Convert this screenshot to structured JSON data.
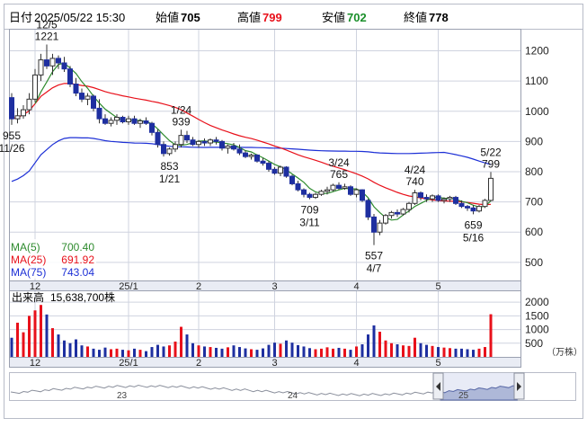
{
  "header": {
    "date_label": "日付",
    "datetime": "2025/05/22 15:30",
    "open_label": "始値",
    "open": "705",
    "high_label": "高値",
    "high": "799",
    "low_label": "安値",
    "low": "702",
    "close_label": "終値",
    "close": "778"
  },
  "legend": {
    "ma5_label": "MA(5)",
    "ma5": "700.40",
    "ma25_label": "MA(25)",
    "ma25": "691.92",
    "ma75_label": "MA(75)",
    "ma75": "743.04"
  },
  "volume_panel": {
    "title": "出来高",
    "value": "15,638,700株",
    "unit": "（万株）"
  },
  "navigator": {
    "year_labels": [
      "23",
      "24",
      "25"
    ]
  },
  "colors": {
    "up": "#e8101a",
    "down": "#1e2fa0",
    "ma5": "#2e8b2e",
    "ma25": "#e8101a",
    "ma75": "#1c2fd6",
    "grid": "#cfd3df",
    "nav_fill": "#aeb8d8"
  },
  "chart_data": [
    {
      "type": "candlestick",
      "ylim": [
        440,
        1270
      ],
      "y_ticks": [
        500,
        600,
        700,
        800,
        900,
        1000,
        1100,
        1200
      ],
      "x_tick_labels": [
        "12",
        "25/1",
        "2",
        "3",
        "4",
        "5"
      ],
      "candles": [
        [
          1045,
          1060,
          955,
          975
        ],
        [
          975,
          1010,
          960,
          985
        ],
        [
          985,
          1020,
          975,
          1005
        ],
        [
          1005,
          1060,
          990,
          1040
        ],
        [
          1040,
          1140,
          1030,
          1120
        ],
        [
          1120,
          1190,
          1100,
          1170
        ],
        [
          1170,
          1221,
          1140,
          1150
        ],
        [
          1150,
          1190,
          1120,
          1175
        ],
        [
          1175,
          1185,
          1140,
          1160
        ],
        [
          1160,
          1180,
          1130,
          1140
        ],
        [
          1140,
          1150,
          1080,
          1090
        ],
        [
          1090,
          1110,
          1050,
          1060
        ],
        [
          1060,
          1075,
          1030,
          1040
        ],
        [
          1040,
          1060,
          1020,
          1050
        ],
        [
          1050,
          1055,
          1000,
          1010
        ],
        [
          1010,
          1040,
          960,
          975
        ],
        [
          975,
          990,
          955,
          960
        ],
        [
          960,
          980,
          950,
          970
        ],
        [
          970,
          990,
          955,
          980
        ],
        [
          980,
          985,
          960,
          965
        ],
        [
          965,
          985,
          955,
          975
        ],
        [
          975,
          985,
          955,
          960
        ],
        [
          960,
          975,
          945,
          968
        ],
        [
          968,
          980,
          955,
          960
        ],
        [
          960,
          965,
          920,
          930
        ],
        [
          930,
          940,
          880,
          890
        ],
        [
          890,
          900,
          850,
          860
        ],
        [
          860,
          880,
          853,
          875
        ],
        [
          875,
          900,
          865,
          890
        ],
        [
          890,
          939,
          880,
          920
        ],
        [
          920,
          935,
          895,
          905
        ],
        [
          905,
          915,
          885,
          890
        ],
        [
          890,
          905,
          880,
          900
        ],
        [
          900,
          910,
          885,
          895
        ],
        [
          895,
          910,
          885,
          905
        ],
        [
          905,
          915,
          890,
          900
        ],
        [
          900,
          905,
          870,
          878
        ],
        [
          878,
          890,
          860,
          885
        ],
        [
          885,
          895,
          870,
          875
        ],
        [
          875,
          890,
          855,
          862
        ],
        [
          862,
          870,
          845,
          850
        ],
        [
          850,
          860,
          840,
          855
        ],
        [
          855,
          858,
          830,
          835
        ],
        [
          835,
          845,
          820,
          828
        ],
        [
          828,
          835,
          800,
          808
        ],
        [
          808,
          815,
          790,
          795
        ],
        [
          795,
          820,
          785,
          815
        ],
        [
          815,
          818,
          780,
          785
        ],
        [
          785,
          790,
          755,
          760
        ],
        [
          760,
          770,
          735,
          740
        ],
        [
          740,
          745,
          715,
          725
        ],
        [
          725,
          730,
          709,
          715
        ],
        [
          715,
          730,
          710,
          725
        ],
        [
          725,
          740,
          720,
          735
        ],
        [
          735,
          750,
          725,
          740
        ],
        [
          740,
          760,
          735,
          755
        ],
        [
          755,
          765,
          740,
          745
        ],
        [
          745,
          760,
          740,
          750
        ],
        [
          750,
          755,
          720,
          725
        ],
        [
          725,
          745,
          715,
          740
        ],
        [
          740,
          742,
          700,
          705
        ],
        [
          705,
          710,
          640,
          650
        ],
        [
          650,
          660,
          557,
          600
        ],
        [
          600,
          640,
          590,
          630
        ],
        [
          630,
          660,
          625,
          655
        ],
        [
          655,
          670,
          645,
          665
        ],
        [
          665,
          675,
          650,
          660
        ],
        [
          660,
          680,
          655,
          675
        ],
        [
          675,
          700,
          665,
          695
        ],
        [
          695,
          740,
          690,
          730
        ],
        [
          730,
          735,
          705,
          715
        ],
        [
          715,
          725,
          700,
          710
        ],
        [
          710,
          725,
          700,
          720
        ],
        [
          720,
          725,
          700,
          705
        ],
        [
          705,
          715,
          695,
          710
        ],
        [
          710,
          720,
          700,
          715
        ],
        [
          715,
          720,
          690,
          695
        ],
        [
          695,
          705,
          680,
          685
        ],
        [
          685,
          690,
          670,
          680
        ],
        [
          680,
          690,
          659,
          670
        ],
        [
          670,
          690,
          665,
          685
        ],
        [
          685,
          710,
          680,
          705
        ],
        [
          705,
          799,
          702,
          778
        ]
      ],
      "annotations": [
        {
          "text": "12/5",
          "price": 1221,
          "idx": 6
        },
        {
          "text": "955",
          "price": 955,
          "idx": 0
        },
        {
          "text": "11/26",
          "price": 955,
          "idx": 0
        },
        {
          "text": "1/24",
          "price": 939,
          "idx": 29
        },
        {
          "text": "853",
          "price": 853,
          "idx": 27
        },
        {
          "text": "1/21",
          "price": 853,
          "idx": 27
        },
        {
          "text": "3/24",
          "price": 765,
          "idx": 56
        },
        {
          "text": "709",
          "price": 709,
          "idx": 51
        },
        {
          "text": "3/11",
          "price": 709,
          "idx": 51
        },
        {
          "text": "557",
          "price": 557,
          "idx": 62
        },
        {
          "text": "4/7",
          "price": 557,
          "idx": 62
        },
        {
          "text": "4/24",
          "price": 740,
          "idx": 69
        },
        {
          "text": "659",
          "price": 659,
          "idx": 79
        },
        {
          "text": "5/16",
          "price": 659,
          "idx": 79
        },
        {
          "text": "5/22",
          "price": 799,
          "idx": 82
        }
      ],
      "ma5_last": 700.4,
      "ma25_last": 691.92,
      "ma75_last": 743.04
    },
    {
      "type": "bar",
      "ylim": [
        0,
        2400
      ],
      "y_ticks": [
        500,
        1000,
        1500,
        2000
      ],
      "unit": "万株",
      "volumes": [
        700,
        1250,
        900,
        1500,
        1700,
        1900,
        1550,
        1050,
        820,
        600,
        500,
        640,
        420,
        380,
        300,
        260,
        340,
        280,
        300,
        260,
        240,
        300,
        260,
        210,
        360,
        440,
        380,
        420,
        560,
        1100,
        820,
        500,
        420,
        380,
        360,
        330,
        300,
        350,
        420,
        360,
        310,
        280,
        260,
        310,
        440,
        520,
        480,
        600,
        520,
        430,
        380,
        320,
        280,
        300,
        350,
        300,
        330,
        300,
        260,
        380,
        460,
        820,
        1150,
        920,
        600,
        500,
        460,
        420,
        400,
        700,
        500,
        440,
        400,
        360,
        340,
        320,
        300,
        300,
        280,
        260,
        300,
        360,
        1560
      ]
    }
  ]
}
